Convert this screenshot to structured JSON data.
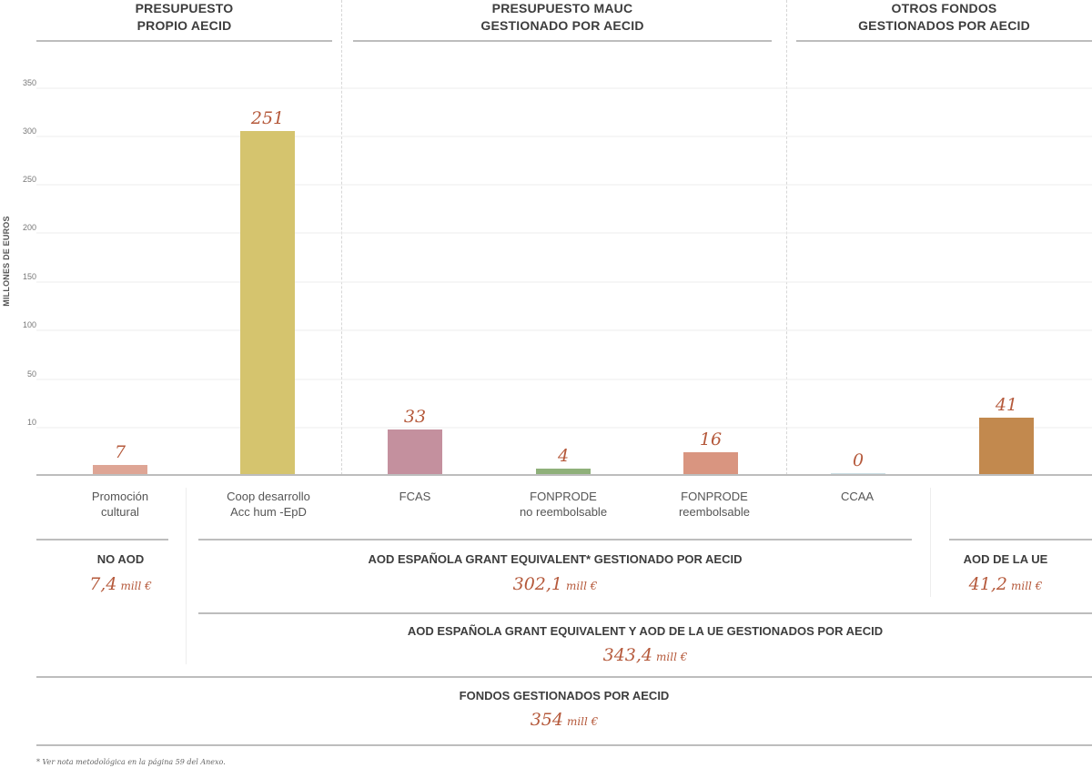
{
  "sections": [
    {
      "title_line1": "PRESUPUESTO",
      "title_line2": "PROPIO AECID"
    },
    {
      "title_line1": "PRESUPUESTO MAUC",
      "title_line2": "GESTIONADO POR AECID"
    },
    {
      "title_line1": "OTROS FONDOS",
      "title_line2": "GESTIONADOS POR AECID"
    }
  ],
  "chart_data": {
    "type": "bar",
    "ylabel": "MILLONES DE EUROS",
    "yticks": [
      "10",
      "50",
      "100",
      "150",
      "200",
      "250",
      "300",
      "350"
    ],
    "grid": true,
    "categories": [
      {
        "line1": "Promoción",
        "line2": "cultural"
      },
      {
        "line1": "Coop desarrollo",
        "line2": "Acc hum -EpD"
      },
      {
        "line1": "FCAS",
        "line2": ""
      },
      {
        "line1": "FONPRODE",
        "line2": "no reembolsable"
      },
      {
        "line1": "FONPRODE",
        "line2": "reembolsable"
      },
      {
        "line1": "CCAA",
        "line2": ""
      },
      {
        "line1": "",
        "line2": ""
      }
    ],
    "values": [
      7,
      251,
      33,
      4,
      16,
      0,
      41
    ],
    "value_labels": [
      "7",
      "251",
      "33",
      "4",
      "16",
      "0",
      "41"
    ],
    "colors": [
      "#dea595",
      "#d5c46e",
      "#c4909e",
      "#8fb07a",
      "#d99580",
      "#c9dde3",
      "#c2894e"
    ]
  },
  "summary": {
    "no_aod": {
      "title": "NO AOD",
      "value": "7,4",
      "unit": "mill €"
    },
    "aod_grant": {
      "title": "AOD ESPAÑOLA GRANT EQUIVALENT* GESTIONADO POR AECID",
      "value": "302,1",
      "unit": "mill €"
    },
    "aod_ue": {
      "title": "AOD DE LA UE",
      "value": "41,2",
      "unit": "mill €"
    },
    "aod_total": {
      "title": "AOD ESPAÑOLA GRANT EQUIVALENT Y AOD DE LA UE GESTIONADOS POR AECID",
      "value": "343,4",
      "unit": "mill €"
    },
    "fondos": {
      "title": "FONDOS GESTIONADOS POR AECID",
      "value": "354",
      "unit": "mill €"
    }
  },
  "footnote": "* Ver nota metodológica en la página 59 del Anexo."
}
